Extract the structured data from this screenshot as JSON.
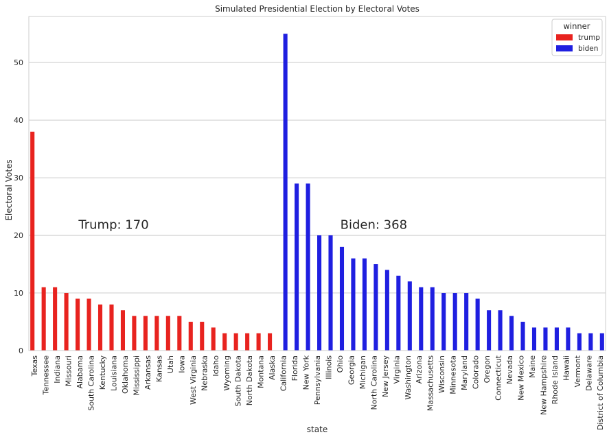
{
  "chart_data": {
    "type": "bar",
    "title": "Simulated Presidential Election by Electoral Votes",
    "xlabel": "state",
    "ylabel": "Electoral Votes",
    "ylim": [
      0,
      58
    ],
    "yticks": [
      0,
      10,
      20,
      30,
      40,
      50
    ],
    "grid": "horizontal",
    "legend": {
      "title": "winner",
      "placement": "top-right"
    },
    "categories": [
      "Texas",
      "Tennessee",
      "Indiana",
      "Missouri",
      "Alabama",
      "South Carolina",
      "Kentucky",
      "Louisiana",
      "Oklahoma",
      "Mississippi",
      "Arkansas",
      "Kansas",
      "Utah",
      "Iowa",
      "West Virginia",
      "Nebraska",
      "Idaho",
      "Wyoming",
      "South Dakota",
      "North Dakota",
      "Montana",
      "Alaska",
      "California",
      "Florida",
      "New York",
      "Pennsylvania",
      "Illinois",
      "Ohio",
      "Georgia",
      "Michigan",
      "North Carolina",
      "New Jersey",
      "Virginia",
      "Washington",
      "Arizona",
      "Massachusetts",
      "Wisconsin",
      "Minnesota",
      "Maryland",
      "Colorado",
      "Oregon",
      "Connecticut",
      "Nevada",
      "New Mexico",
      "Maine",
      "New Hampshire",
      "Rhode Island",
      "Hawaii",
      "Vermont",
      "Delaware",
      "District of Columbia"
    ],
    "series": [
      {
        "name": "trump",
        "color": "#e8231f",
        "values": [
          38,
          11,
          11,
          10,
          9,
          9,
          8,
          8,
          7,
          6,
          6,
          6,
          6,
          6,
          5,
          5,
          4,
          3,
          3,
          3,
          3,
          3,
          null,
          null,
          null,
          null,
          null,
          null,
          null,
          null,
          null,
          null,
          null,
          null,
          null,
          null,
          null,
          null,
          null,
          null,
          null,
          null,
          null,
          null,
          null,
          null,
          null,
          null,
          null,
          null,
          null
        ]
      },
      {
        "name": "biden",
        "color": "#1f1fe0",
        "values": [
          null,
          null,
          null,
          null,
          null,
          null,
          null,
          null,
          null,
          null,
          null,
          null,
          null,
          null,
          null,
          null,
          null,
          null,
          null,
          null,
          null,
          null,
          55,
          29,
          29,
          20,
          20,
          18,
          16,
          16,
          15,
          14,
          13,
          12,
          11,
          11,
          10,
          10,
          10,
          9,
          7,
          7,
          6,
          5,
          4,
          4,
          4,
          4,
          3,
          3,
          3
        ]
      }
    ],
    "annotations": [
      {
        "text": "Trump: 170",
        "x": "Louisiana",
        "y": 21
      },
      {
        "text": "Biden: 368",
        "x": "North Carolina",
        "y": 21
      }
    ]
  }
}
